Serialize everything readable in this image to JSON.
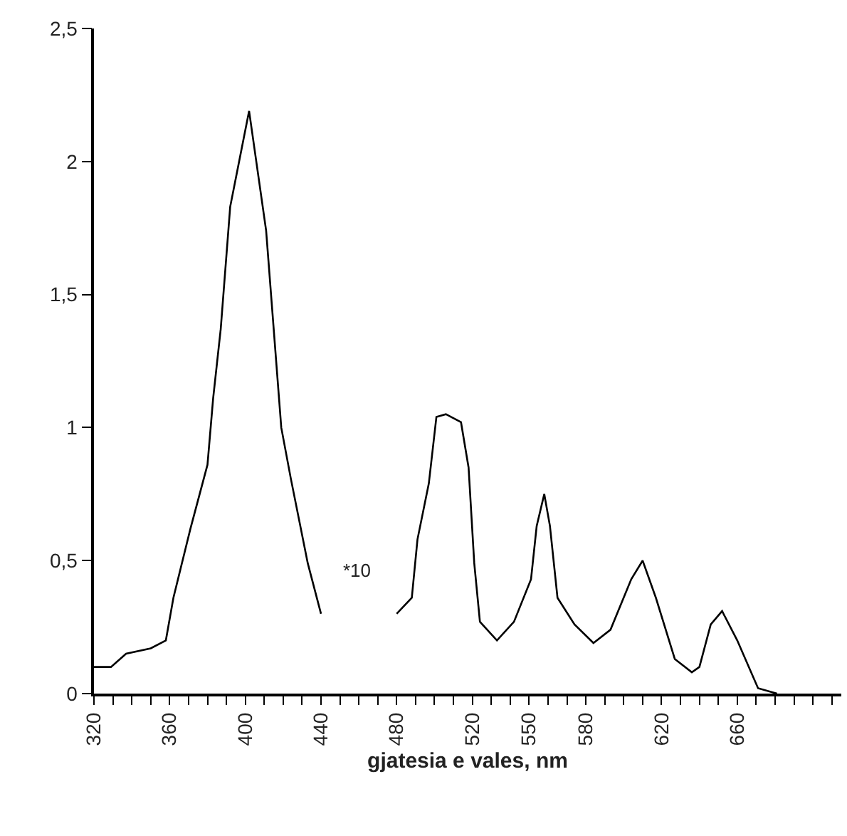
{
  "chart_data": {
    "type": "line",
    "xlabel": "gjatesia e vales, nm",
    "x": [
      320,
      329,
      337,
      350,
      358,
      362,
      371,
      380,
      383,
      387,
      392,
      402,
      411,
      415,
      419,
      424,
      433,
      440,
      460,
      480,
      488,
      491,
      497,
      501,
      506,
      514,
      518,
      521,
      524,
      533,
      542,
      551,
      554,
      558,
      561,
      565,
      574,
      584,
      593,
      604,
      610,
      617,
      627,
      636,
      640,
      646,
      652,
      660,
      671,
      681
    ],
    "series": [
      {
        "color": "#000000",
        "values": [
          0.1,
          0.1,
          0.15,
          0.17,
          0.2,
          0.36,
          0.62,
          0.86,
          1.11,
          1.37,
          1.83,
          2.19,
          1.74,
          1.37,
          1.0,
          0.81,
          0.49,
          0.3,
          null,
          0.3,
          0.36,
          0.58,
          0.79,
          1.04,
          1.05,
          1.02,
          0.85,
          0.49,
          0.27,
          0.2,
          0.27,
          0.43,
          0.63,
          0.75,
          0.63,
          0.36,
          0.26,
          0.19,
          0.24,
          0.43,
          0.5,
          0.36,
          0.13,
          0.08,
          0.1,
          0.26,
          0.31,
          0.2,
          0.02,
          0.0
        ]
      }
    ],
    "annotations": [
      "*10"
    ],
    "xlim": [
      320,
      715
    ],
    "xticks": [
      {
        "value": 320,
        "label": "320"
      },
      {
        "value": 330,
        "label": null
      },
      {
        "value": 340,
        "label": null
      },
      {
        "value": 350,
        "label": null
      },
      {
        "value": 360,
        "label": "360"
      },
      {
        "value": 370,
        "label": null
      },
      {
        "value": 380,
        "label": null
      },
      {
        "value": 390,
        "label": null
      },
      {
        "value": 400,
        "label": "400"
      },
      {
        "value": 410,
        "label": null
      },
      {
        "value": 420,
        "label": null
      },
      {
        "value": 430,
        "label": null
      },
      {
        "value": 440,
        "label": "440"
      },
      {
        "value": 450,
        "label": null
      },
      {
        "value": 460,
        "label": null
      },
      {
        "value": 470,
        "label": null
      },
      {
        "value": 480,
        "label": "480"
      },
      {
        "value": 490,
        "label": null
      },
      {
        "value": 500,
        "label": null
      },
      {
        "value": 510,
        "label": null
      },
      {
        "value": 520,
        "label": "520"
      },
      {
        "value": 530,
        "label": null
      },
      {
        "value": 540,
        "label": null
      },
      {
        "value": 550,
        "label": "550"
      },
      {
        "value": 560,
        "label": null
      },
      {
        "value": 570,
        "label": null
      },
      {
        "value": 580,
        "label": "580"
      },
      {
        "value": 590,
        "label": null
      },
      {
        "value": 600,
        "label": null
      },
      {
        "value": 610,
        "label": null
      },
      {
        "value": 620,
        "label": "620"
      },
      {
        "value": 630,
        "label": null
      },
      {
        "value": 640,
        "label": null
      },
      {
        "value": 650,
        "label": null
      },
      {
        "value": 660,
        "label": "660"
      },
      {
        "value": 670,
        "label": null
      },
      {
        "value": 680,
        "label": null
      },
      {
        "value": 690,
        "label": null
      },
      {
        "value": 700,
        "label": null
      },
      {
        "value": 710,
        "label": null
      }
    ],
    "ylim": [
      0,
      2.5
    ],
    "yticks": [
      0,
      {
        "value": 0.5,
        "label": "0,5"
      },
      1,
      {
        "value": 1.5,
        "label": "1,5"
      },
      2,
      {
        "value": 2.5,
        "label": "2,5"
      }
    ],
    "grid": false,
    "marker": "none",
    "line_style": "solid"
  }
}
